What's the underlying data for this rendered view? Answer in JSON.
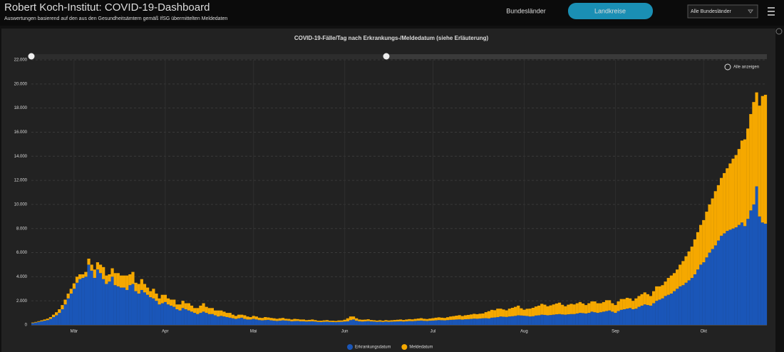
{
  "header": {
    "title": "Robert Koch-Institut: COVID-19-Dashboard",
    "subtitle": "Auswertungen basierend auf den aus den Gesundheitsämtern gemäß IfSG übermittelten Meldedaten",
    "tabs": [
      "Bundesländer",
      "Landkreise"
    ],
    "dropdown": "Alle Bundesländer"
  },
  "zoom_label": "Alle anzeigen",
  "chart_data": {
    "type": "stacked-bar",
    "title": "COVID-19-Fälle/Tag nach Erkrankungs-/Meldedatum (siehe Erläuterung)",
    "categories": [
      null,
      null,
      null,
      null,
      null,
      null,
      null,
      null,
      null,
      null,
      null,
      null,
      null,
      null,
      "Mär",
      null,
      null,
      null,
      null,
      null,
      null,
      null,
      null,
      null,
      null,
      null,
      null,
      null,
      null,
      null,
      null,
      null,
      null,
      null,
      null,
      null,
      null,
      null,
      null,
      null,
      null,
      null,
      null,
      null,
      null,
      "Apr",
      null,
      null,
      null,
      null,
      null,
      null,
      null,
      null,
      null,
      null,
      null,
      null,
      null,
      null,
      null,
      null,
      null,
      null,
      null,
      null,
      null,
      null,
      null,
      null,
      null,
      null,
      null,
      null,
      null,
      "Mai",
      null,
      null,
      null,
      null,
      null,
      null,
      null,
      null,
      null,
      null,
      null,
      null,
      null,
      null,
      null,
      null,
      null,
      null,
      null,
      null,
      null,
      null,
      null,
      null,
      null,
      null,
      null,
      null,
      null,
      null,
      "Jun",
      null,
      null,
      null,
      null,
      null,
      null,
      null,
      null,
      null,
      null,
      null,
      null,
      null,
      null,
      null,
      null,
      null,
      null,
      null,
      null,
      null,
      null,
      null,
      null,
      null,
      null,
      null,
      null,
      null,
      "Jul",
      null,
      null,
      null,
      null,
      null,
      null,
      null,
      null,
      null,
      null,
      null,
      null,
      null,
      null,
      null,
      null,
      null,
      null,
      null,
      null,
      null,
      null,
      null,
      null,
      null,
      null,
      null,
      null,
      null,
      null,
      "Aug",
      null,
      null,
      null,
      null,
      null,
      null,
      null,
      null,
      null,
      null,
      null,
      null,
      null,
      null,
      null,
      null,
      null,
      null,
      null,
      null,
      null,
      null,
      null,
      null,
      null,
      null,
      null,
      null,
      null,
      null,
      "Sep",
      null,
      null,
      null,
      null,
      null,
      null,
      null,
      null,
      null,
      null,
      null,
      null,
      null,
      null,
      null,
      null,
      null,
      null,
      null,
      null,
      null,
      null,
      null,
      null,
      null,
      null,
      null,
      null,
      null,
      "Okt",
      null,
      null,
      null,
      null,
      null,
      null,
      null,
      null,
      null,
      null,
      null,
      null,
      null,
      null,
      null,
      null,
      null,
      null,
      null,
      null,
      null
    ],
    "series": [
      {
        "name": "Erkrankungsdatum",
        "color": "#1a56b8",
        "values": [
          150,
          200,
          250,
          300,
          350,
          400,
          500,
          650,
          800,
          1000,
          1300,
          1700,
          2200,
          2600,
          3000,
          3500,
          3800,
          3900,
          4000,
          5000,
          4500,
          3900,
          4600,
          4300,
          3800,
          3400,
          3600,
          4000,
          3300,
          3200,
          3100,
          3100,
          2900,
          3300,
          3400,
          2800,
          2600,
          2900,
          2700,
          2500,
          2300,
          2200,
          2000,
          1700,
          1800,
          1900,
          1700,
          1600,
          1500,
          1300,
          1200,
          1400,
          1300,
          1200,
          1100,
          1000,
          900,
          1000,
          1100,
          1000,
          900,
          900,
          800,
          700,
          750,
          700,
          650,
          600,
          550,
          500,
          550,
          600,
          500,
          450,
          450,
          500,
          450,
          400,
          380,
          400,
          420,
          380,
          350,
          330,
          350,
          380,
          360,
          340,
          300,
          320,
          330,
          300,
          300,
          280,
          290,
          300,
          280,
          250,
          240,
          260,
          270,
          250,
          240,
          230,
          250,
          260,
          280,
          300,
          400,
          450,
          350,
          300,
          280,
          300,
          320,
          290,
          280,
          260,
          270,
          250,
          280,
          260,
          270,
          280,
          290,
          300,
          280,
          300,
          320,
          310,
          330,
          350,
          360,
          340,
          330,
          350,
          360,
          380,
          400,
          390,
          380,
          400,
          420,
          430,
          450,
          460,
          440,
          470,
          480,
          500,
          520,
          510,
          530,
          550,
          560,
          540,
          600,
          620,
          650,
          700,
          680,
          660,
          700,
          720,
          750,
          800,
          780,
          760,
          740,
          700,
          720,
          780,
          800,
          850,
          830,
          800,
          820,
          850,
          880,
          900,
          870,
          850,
          880,
          900,
          900,
          950,
          1000,
          980,
          950,
          1000,
          1100,
          1050,
          1000,
          1050,
          1100,
          1150,
          1200,
          1100,
          1000,
          1150,
          1250,
          1300,
          1350,
          1400,
          1300,
          1350,
          1500,
          1600,
          1700,
          1650,
          1600,
          1800,
          2000,
          2100,
          2200,
          2400,
          2500,
          2600,
          2800,
          3000,
          3200,
          3300,
          3500,
          3700,
          3900,
          4200,
          4600,
          5000,
          5200,
          5600,
          6000,
          6300,
          6600,
          7000,
          7400,
          7600,
          7800,
          7900,
          8000,
          8100,
          8300,
          8500,
          8200,
          8800,
          9500,
          10000,
          11500,
          9000,
          8500,
          8400
        ]
      },
      {
        "name": "Meldedatum",
        "color": "#f5a800",
        "values": [
          50,
          50,
          60,
          80,
          100,
          120,
          150,
          200,
          250,
          300,
          350,
          400,
          400,
          400,
          450,
          500,
          400,
          300,
          400,
          500,
          500,
          700,
          600,
          700,
          1000,
          700,
          600,
          700,
          1000,
          1100,
          1000,
          1000,
          1200,
          900,
          1000,
          700,
          800,
          900,
          700,
          600,
          500,
          800,
          600,
          500,
          700,
          600,
          500,
          500,
          600,
          400,
          500,
          600,
          500,
          600,
          500,
          400,
          500,
          600,
          700,
          500,
          500,
          500,
          400,
          500,
          450,
          400,
          350,
          400,
          300,
          250,
          300,
          250,
          300,
          250,
          200,
          250,
          250,
          200,
          200,
          250,
          200,
          200,
          200,
          180,
          200,
          200,
          150,
          160,
          150,
          180,
          150,
          150,
          150,
          120,
          130,
          150,
          120,
          100,
          110,
          120,
          130,
          100,
          110,
          100,
          120,
          110,
          150,
          250,
          300,
          250,
          200,
          150,
          150,
          140,
          150,
          120,
          110,
          100,
          120,
          100,
          120,
          110,
          120,
          130,
          140,
          150,
          130,
          150,
          160,
          150,
          170,
          180,
          200,
          170,
          160,
          180,
          200,
          220,
          230,
          210,
          200,
          240,
          280,
          300,
          320,
          350,
          300,
          330,
          350,
          370,
          400,
          380,
          400,
          400,
          500,
          600,
          650,
          600,
          700,
          650,
          600,
          550,
          650,
          700,
          750,
          800,
          600,
          500,
          600,
          650,
          700,
          750,
          800,
          900,
          850,
          750,
          800,
          850,
          900,
          950,
          800,
          700,
          800,
          850,
          800,
          850,
          900,
          800,
          700,
          800,
          850,
          900,
          800,
          750,
          800,
          900,
          850,
          700,
          650,
          800,
          900,
          850,
          900,
          800,
          700,
          850,
          900,
          950,
          1000,
          900,
          800,
          1000,
          1200,
          1100,
          1100,
          1200,
          1400,
          1500,
          1500,
          1600,
          1800,
          2000,
          2200,
          2400,
          2600,
          2900,
          3100,
          3300,
          3500,
          3800,
          4000,
          4200,
          4500,
          4600,
          4800,
          5000,
          5200,
          5500,
          5800,
          6000,
          6300,
          6800,
          7200,
          7500,
          8000,
          8500,
          7800,
          9200,
          10500,
          10700
        ]
      }
    ],
    "ylim": [
      0,
      22000
    ],
    "yticks": [
      0,
      {
        "value": 2000,
        "label": "2.000"
      },
      {
        "value": 4000,
        "label": "4.000"
      },
      {
        "value": 6000,
        "label": "6.000"
      },
      {
        "value": 8000,
        "label": "8.000"
      },
      {
        "value": 10000,
        "label": "10.000"
      },
      {
        "value": 12000,
        "label": "12.000"
      },
      {
        "value": 14000,
        "label": "14.000"
      },
      {
        "value": 16000,
        "label": "16.000"
      },
      {
        "value": 18000,
        "label": "18.000"
      },
      {
        "value": 20000,
        "label": "20.000"
      },
      {
        "value": 22000,
        "label": "22.000"
      }
    ],
    "grid": true
  }
}
